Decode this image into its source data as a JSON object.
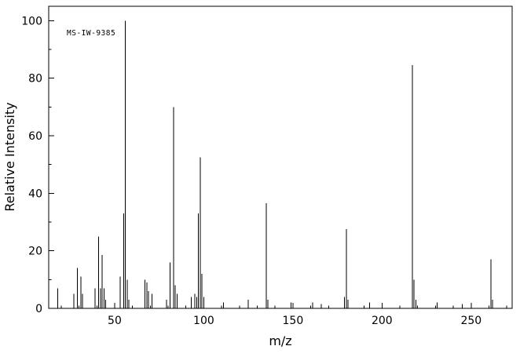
{
  "chart_data": {
    "type": "bar",
    "subtype": "mass-spectrum",
    "annotation": "MS-IW-9385",
    "xlabel": "m/z",
    "ylabel": "Relative Intensity",
    "xlim": [
      13,
      273
    ],
    "ylim": [
      0,
      105
    ],
    "x_major_ticks": [
      50,
      100,
      150,
      200,
      250
    ],
    "x_minor_step": 10,
    "y_major_ticks": [
      0,
      20,
      40,
      60,
      80,
      100
    ],
    "y_minor_step": 10,
    "grid": false,
    "legend": "none",
    "line_color": "#000000",
    "background_color": "#ffffff",
    "peaks": [
      [
        18,
        7
      ],
      [
        27,
        5
      ],
      [
        29,
        14
      ],
      [
        31,
        11
      ],
      [
        32,
        5
      ],
      [
        39,
        7
      ],
      [
        41,
        25
      ],
      [
        42,
        7
      ],
      [
        43,
        18.5
      ],
      [
        44,
        7
      ],
      [
        45,
        3
      ],
      [
        53,
        11
      ],
      [
        55,
        33
      ],
      [
        56,
        100
      ],
      [
        57,
        10
      ],
      [
        58,
        3
      ],
      [
        67,
        10
      ],
      [
        68,
        9
      ],
      [
        69,
        6
      ],
      [
        71,
        5
      ],
      [
        79,
        3
      ],
      [
        81,
        16
      ],
      [
        83,
        70
      ],
      [
        84,
        8
      ],
      [
        85,
        5
      ],
      [
        93,
        4
      ],
      [
        95,
        5
      ],
      [
        96,
        4
      ],
      [
        97,
        33
      ],
      [
        98,
        52.5
      ],
      [
        99,
        12
      ],
      [
        100,
        4
      ],
      [
        111,
        2
      ],
      [
        125,
        3
      ],
      [
        135,
        36.5
      ],
      [
        136,
        3
      ],
      [
        149,
        2
      ],
      [
        161,
        2
      ],
      [
        166,
        1.5
      ],
      [
        179,
        4
      ],
      [
        180,
        27.5
      ],
      [
        181,
        3
      ],
      [
        193,
        2
      ],
      [
        217,
        84.5
      ],
      [
        218,
        10
      ],
      [
        219,
        3
      ],
      [
        231,
        2
      ],
      [
        245,
        1.5
      ],
      [
        261,
        17
      ],
      [
        262,
        3
      ]
    ]
  }
}
